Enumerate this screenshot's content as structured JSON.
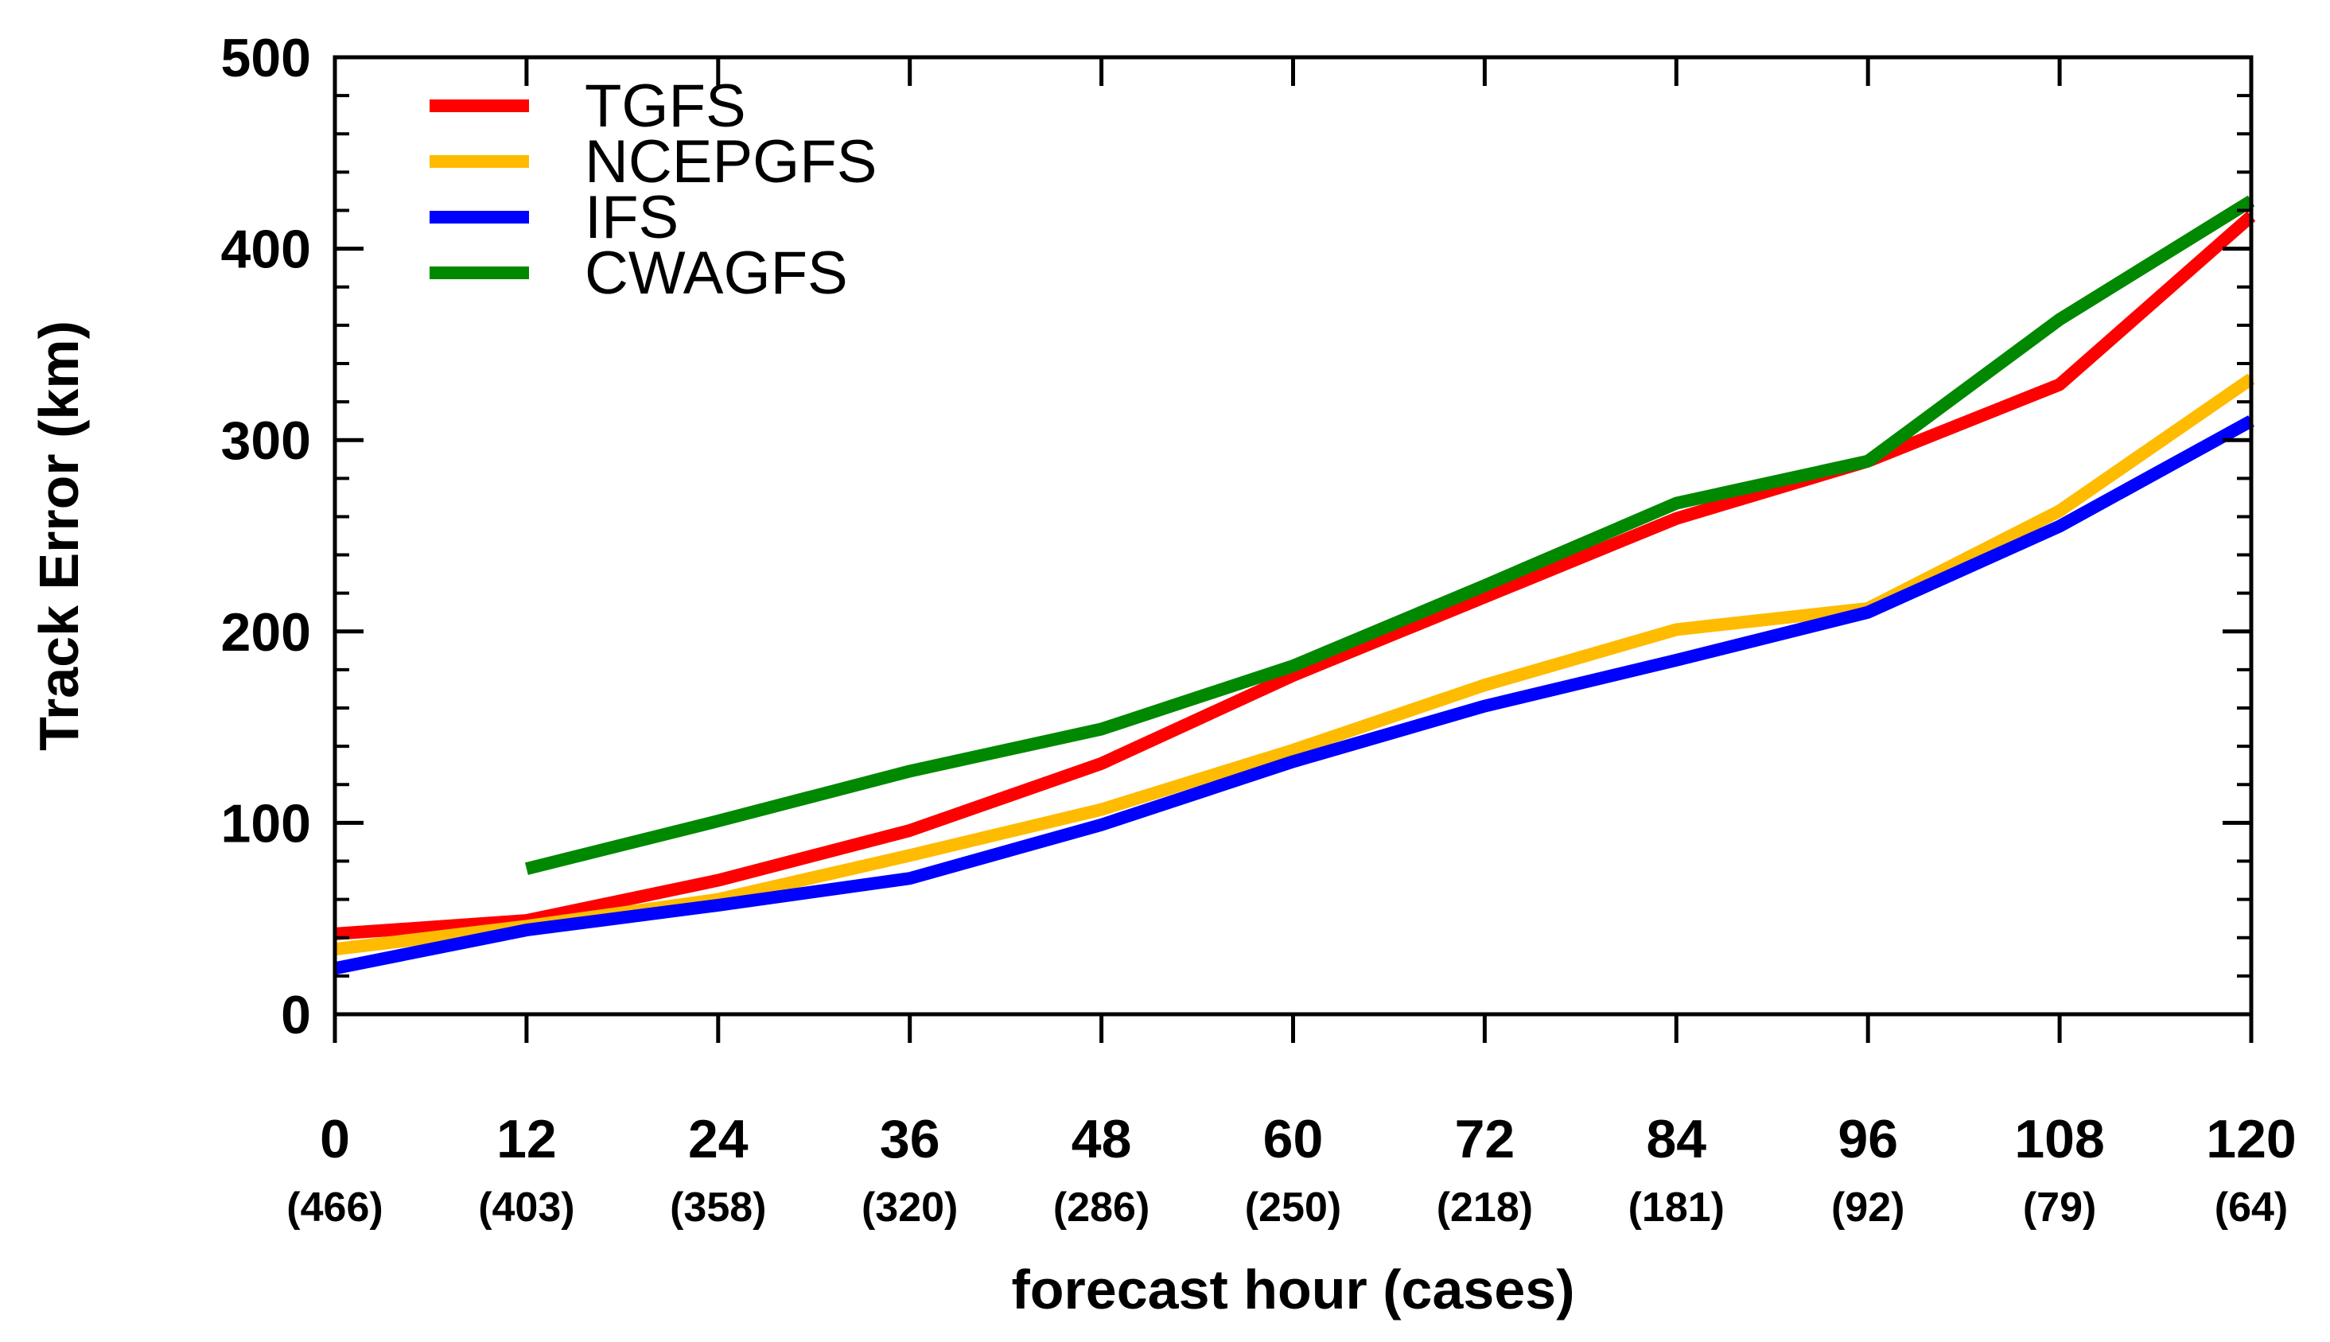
{
  "chart_data": {
    "type": "line",
    "title": "",
    "xlabel": "forecast hour (cases)",
    "ylabel": "Track Error (km)",
    "ylim": [
      0,
      500
    ],
    "y_ticks": [
      0,
      100,
      200,
      300,
      400,
      500
    ],
    "y_tick_labels": [
      "0",
      "100",
      "200",
      "300",
      "400",
      "500"
    ],
    "x": [
      0,
      12,
      24,
      36,
      48,
      60,
      72,
      84,
      96,
      108,
      120
    ],
    "x_tick_labels": [
      "0",
      "12",
      "24",
      "36",
      "48",
      "60",
      "72",
      "84",
      "96",
      "108",
      "120"
    ],
    "cases": [
      "(466)",
      "(403)",
      "(358)",
      "(320)",
      "(286)",
      "(250)",
      "(218)",
      "(181)",
      "(92)",
      "(79)",
      "(64)"
    ],
    "legend_position": "top-left",
    "grid": false,
    "series": [
      {
        "name": "TGFS",
        "color": "#ff0000",
        "values": [
          42,
          49,
          70,
          96,
          131,
          177,
          218,
          259,
          289,
          329,
          417
        ]
      },
      {
        "name": "NCEPGFS",
        "color": "#ffbb00",
        "values": [
          34,
          46,
          60,
          83,
          107,
          138,
          172,
          201,
          212,
          263,
          332
        ]
      },
      {
        "name": "IFS",
        "color": "#0000ff",
        "values": [
          24,
          44,
          57,
          71,
          99,
          132,
          161,
          185,
          210,
          255,
          310
        ]
      },
      {
        "name": "CWAGFS",
        "color": "#008800",
        "values": [
          null,
          76,
          101,
          127,
          149,
          182,
          224,
          267,
          289,
          363,
          425
        ]
      }
    ]
  }
}
